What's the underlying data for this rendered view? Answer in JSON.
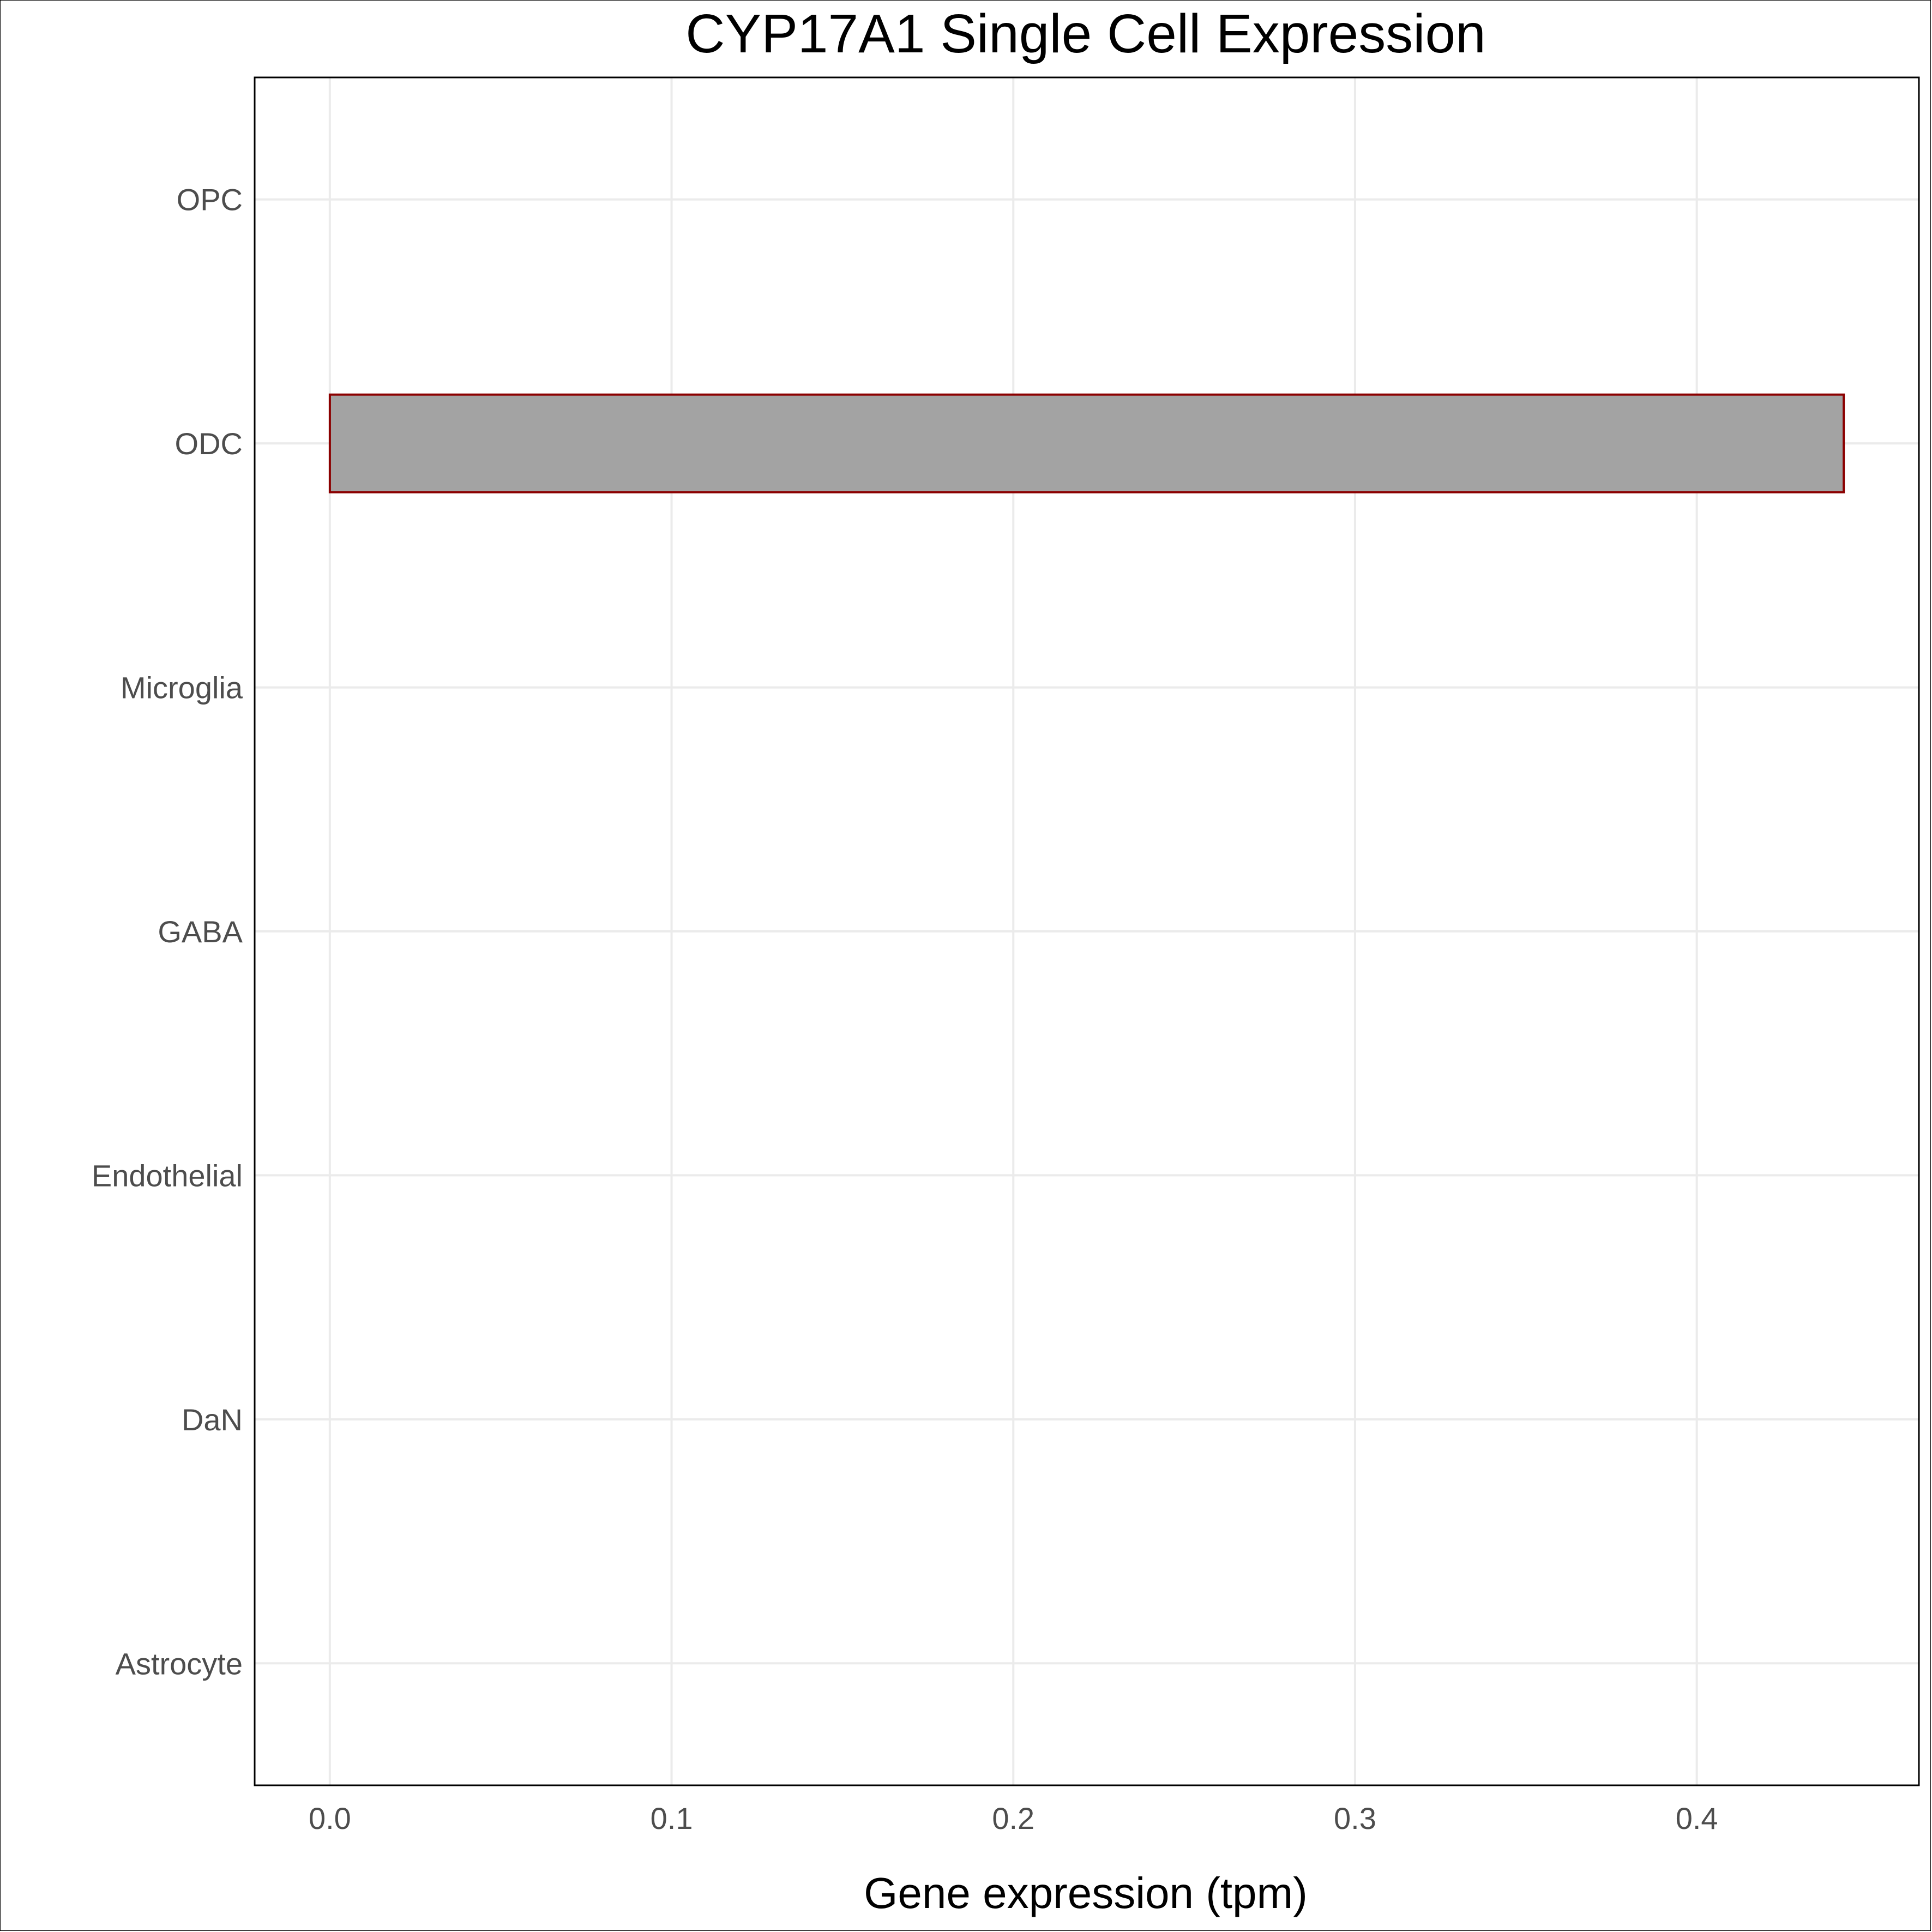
{
  "chart_data": {
    "type": "bar",
    "orientation": "horizontal",
    "title": "CYP17A1 Single Cell Expression",
    "xlabel": "Gene expression (tpm)",
    "ylabel": "",
    "categories": [
      "Astrocyte",
      "DaN",
      "Endothelial",
      "GABA",
      "Microglia",
      "ODC",
      "OPC"
    ],
    "values": [
      0,
      0,
      0,
      0,
      0,
      0.443,
      0
    ],
    "xlim": [
      -0.022,
      0.465
    ],
    "xticks": [
      0.0,
      0.1,
      0.2,
      0.3,
      0.4
    ],
    "xtick_labels": [
      "0.0",
      "0.1",
      "0.2",
      "0.3",
      "0.4"
    ],
    "grid": true,
    "legend": "none",
    "colors": {
      "bar_fill": "#a3a3a3",
      "bar_outline": "#8b0000",
      "grid": "#ebebeb",
      "tick_text": "#4d4d4d",
      "panel_border": "#000000"
    }
  }
}
